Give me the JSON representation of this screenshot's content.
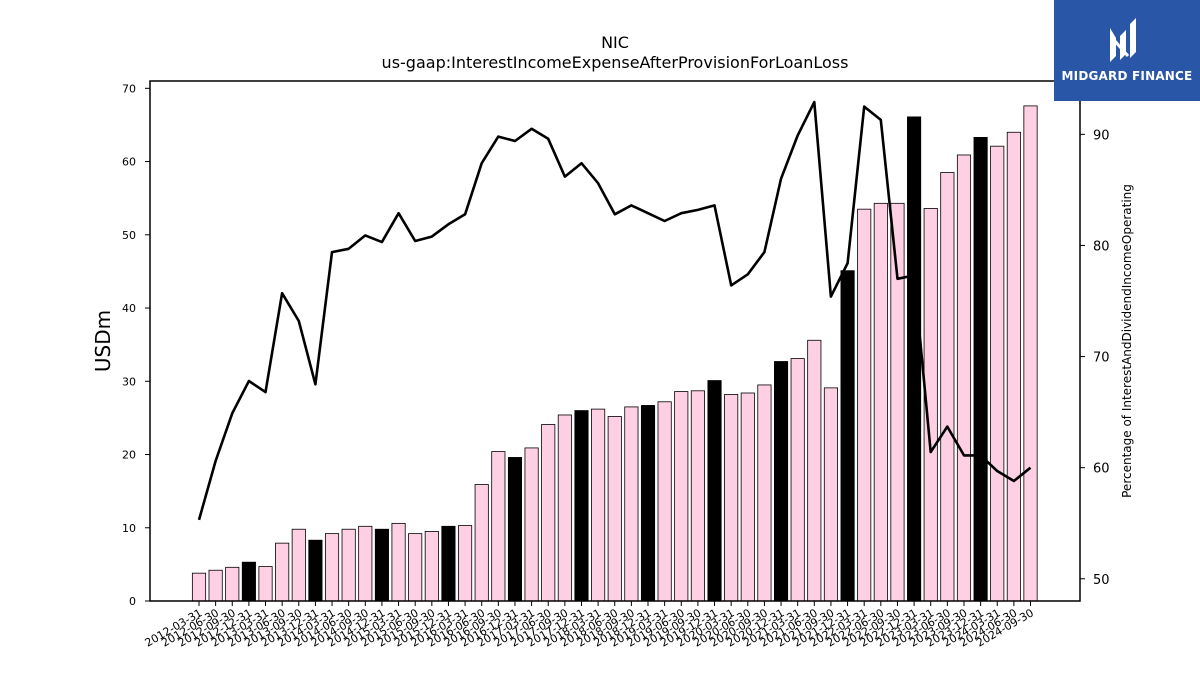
{
  "brand": {
    "name": "MIDGARD FINANCE",
    "bg_color": "#2a56a8"
  },
  "chart_data": {
    "type": "bar",
    "title": "NIC",
    "subtitle": "us-gaap:InterestIncomeExpenseAfterProvisionForLoanLoss",
    "ylabel": "USDm",
    "y2label": "Percentage of InterestAndDividendIncomeOperating",
    "ylim": [
      0,
      71
    ],
    "y2lim": [
      48.0,
      94.8
    ],
    "yticks": [
      0,
      10,
      20,
      30,
      40,
      50,
      60,
      70
    ],
    "y2ticks": [
      50,
      60,
      70,
      80,
      90
    ],
    "categories": [
      "2012-03-31",
      "2012-06-30",
      "2012-09-30",
      "2012-12-31",
      "2013-03-31",
      "2013-06-30",
      "2013-09-30",
      "2013-12-31",
      "2014-03-31",
      "2014-06-30",
      "2014-09-30",
      "2014-12-31",
      "2015-03-31",
      "2015-06-30",
      "2015-09-30",
      "2015-12-31",
      "2016-03-31",
      "2016-06-30",
      "2016-09-30",
      "2016-12-31",
      "2017-03-31",
      "2017-06-30",
      "2017-09-30",
      "2017-12-31",
      "2018-03-31",
      "2018-06-30",
      "2018-09-30",
      "2018-12-31",
      "2019-03-31",
      "2019-06-30",
      "2019-09-30",
      "2019-12-31",
      "2020-03-31",
      "2020-06-30",
      "2020-09-30",
      "2020-12-31",
      "2021-03-31",
      "2021-06-30",
      "2021-09-30",
      "2021-12-31",
      "2022-03-31",
      "2022-06-30",
      "2022-09-30",
      "2022-12-31",
      "2023-03-31",
      "2023-06-30",
      "2023-09-30",
      "2023-12-31",
      "2024-03-31",
      "2024-06-30",
      "2024-09-30"
    ],
    "series": [
      {
        "kind": "bar",
        "values": [
          3.8,
          4.2,
          4.6,
          5.3,
          4.7,
          7.9,
          9.8,
          8.3,
          9.2,
          9.8,
          10.2,
          9.8,
          10.6,
          9.2,
          9.5,
          10.2,
          10.3,
          15.9,
          20.4,
          19.6,
          20.9,
          24.1,
          25.4,
          26.0,
          26.2,
          25.2,
          26.5,
          26.7,
          27.2,
          28.6,
          28.7,
          30.1,
          28.2,
          28.4,
          29.5,
          32.7,
          33.1,
          35.6,
          29.1,
          45.1,
          53.5,
          54.3,
          54.3,
          66.1,
          53.6,
          58.5,
          60.9,
          63.3,
          62.1,
          64.0,
          67.6
        ],
        "colors": [
          "#ffd0e4",
          "#ffd0e4",
          "#ffd0e4",
          "#000000",
          "#ffd0e4",
          "#ffd0e4",
          "#ffd0e4",
          "#000000",
          "#ffd0e4",
          "#ffd0e4",
          "#ffd0e4",
          "#000000",
          "#ffd0e4",
          "#ffd0e4",
          "#ffd0e4",
          "#000000",
          "#ffd0e4",
          "#ffd0e4",
          "#ffd0e4",
          "#000000",
          "#ffd0e4",
          "#ffd0e4",
          "#ffd0e4",
          "#000000",
          "#ffd0e4",
          "#ffd0e4",
          "#ffd0e4",
          "#000000",
          "#ffd0e4",
          "#ffd0e4",
          "#ffd0e4",
          "#000000",
          "#ffd0e4",
          "#ffd0e4",
          "#ffd0e4",
          "#000000",
          "#ffd0e4",
          "#ffd0e4",
          "#ffd0e4",
          "#000000",
          "#ffd0e4",
          "#ffd0e4",
          "#ffd0e4",
          "#000000",
          "#ffd0e4",
          "#ffd0e4",
          "#ffd0e4",
          "#000000",
          "#ffd0e4",
          "#ffd0e4",
          "#ffd0e4"
        ]
      },
      {
        "kind": "line",
        "axis": "right",
        "color": "#000000",
        "values": [
          55.3,
          60.6,
          64.9,
          67.8,
          66.8,
          75.7,
          73.2,
          67.5,
          79.4,
          79.7,
          80.9,
          80.3,
          82.9,
          80.4,
          80.8,
          81.9,
          82.8,
          87.4,
          89.8,
          89.4,
          90.5,
          89.6,
          86.2,
          87.4,
          85.6,
          82.8,
          83.6,
          82.9,
          82.2,
          82.9,
          83.2,
          83.6,
          76.4,
          77.4,
          79.4,
          86.0,
          89.9,
          92.9,
          75.4,
          78.4,
          92.5,
          91.3,
          77.0,
          77.3,
          61.4,
          63.7,
          61.1,
          61.1,
          59.7,
          58.8,
          60.0
        ]
      }
    ],
    "grid": false,
    "legend": "none"
  }
}
